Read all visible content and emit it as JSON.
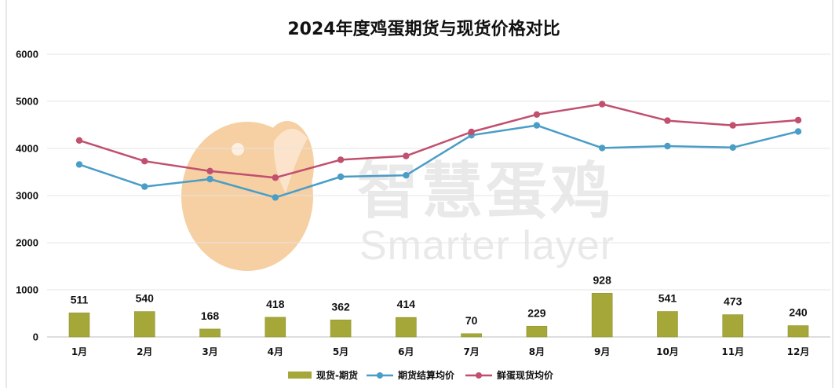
{
  "watermark": {
    "text_cn": "智慧蛋鸡",
    "text_en": "Smarter layer",
    "logo_color": "#f6cfa3"
  },
  "chart_data": {
    "type": "bar+line",
    "title": "2024年度鸡蛋期货与现货价格对比",
    "categories": [
      "1月",
      "2月",
      "3月",
      "4月",
      "5月",
      "6月",
      "7月",
      "8月",
      "9月",
      "10月",
      "11月",
      "12月"
    ],
    "ylim": [
      0,
      6000
    ],
    "yticks": [
      0,
      1000,
      2000,
      3000,
      4000,
      5000,
      6000
    ],
    "grid": true,
    "legend_position": "bottom",
    "series": [
      {
        "name": "现货-期货",
        "type": "bar",
        "color": "#a5a838",
        "values": [
          511,
          540,
          168,
          418,
          362,
          414,
          70,
          229,
          928,
          541,
          473,
          240
        ]
      },
      {
        "name": "期货结算均价",
        "type": "line",
        "color": "#4a9dc7",
        "values": [
          3660,
          3190,
          3350,
          2960,
          3400,
          3430,
          4280,
          4490,
          4010,
          4050,
          4020,
          4360
        ]
      },
      {
        "name": "鲜蛋现货均价",
        "type": "line",
        "color": "#c14f6e",
        "values": [
          4170,
          3730,
          3520,
          3380,
          3760,
          3840,
          4350,
          4720,
          4940,
          4590,
          4490,
          4600
        ]
      }
    ]
  }
}
